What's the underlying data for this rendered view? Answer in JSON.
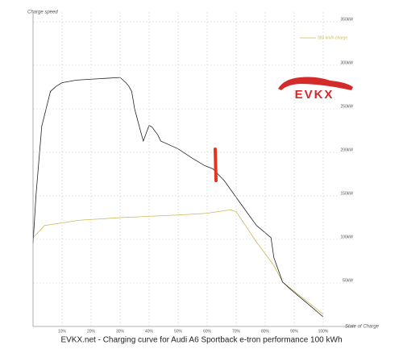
{
  "chart_data": {
    "type": "line",
    "title": "EVKX.net - Charging curve for Audi A6 Sportback e-tron performance 100 kWh",
    "y_label": "Charge speed",
    "x_label": "State of Charge",
    "logo_text": "EVKX",
    "xlim": [
      0,
      100
    ],
    "xticks": [
      {
        "value": 10,
        "label": "10%"
      },
      {
        "value": 20,
        "label": "20%"
      },
      {
        "value": 30,
        "label": "30%"
      },
      {
        "value": 40,
        "label": "40%"
      },
      {
        "value": 50,
        "label": "50%"
      },
      {
        "value": 60,
        "label": "60%"
      },
      {
        "value": 70,
        "label": "70%"
      },
      {
        "value": 80,
        "label": "80%"
      },
      {
        "value": 90,
        "label": "90%"
      },
      {
        "value": 100,
        "label": "100%"
      }
    ],
    "ylim": [
      0,
      350
    ],
    "yticks": [
      {
        "value": 50,
        "label": "50kW"
      },
      {
        "value": 100,
        "label": "100kW"
      },
      {
        "value": 150,
        "label": "150kW"
      },
      {
        "value": 200,
        "label": "200kW"
      },
      {
        "value": 250,
        "label": "250kW"
      },
      {
        "value": 300,
        "label": "300kW"
      },
      {
        "value": 350,
        "label": "350kW"
      }
    ],
    "grid": true,
    "legend": "upper right",
    "series": [
      {
        "color": "#222222",
        "x": [
          0,
          1,
          3,
          6,
          8,
          10,
          15,
          20,
          25,
          30,
          31,
          32,
          33,
          34,
          35,
          37,
          38,
          40,
          41,
          43,
          44,
          50,
          55,
          59,
          62,
          66,
          72,
          77,
          82,
          83,
          86,
          89,
          94,
          100
        ],
        "values": [
          95,
          150,
          230,
          270,
          276,
          280,
          283,
          284,
          285,
          286,
          283,
          280,
          276,
          270,
          250,
          225,
          213,
          231,
          229,
          220,
          213,
          204,
          193,
          185,
          181,
          167,
          139,
          116,
          102,
          79,
          51,
          42,
          28,
          11
        ]
      },
      {
        "name": "300 km/h charge",
        "color": "#c9b85a",
        "x": [
          0,
          4,
          16,
          30,
          50,
          60,
          68,
          70,
          77,
          83,
          86,
          100
        ],
        "values": [
          102,
          116,
          122,
          125,
          128,
          130,
          134,
          132,
          97,
          70,
          51,
          14
        ]
      }
    ]
  }
}
